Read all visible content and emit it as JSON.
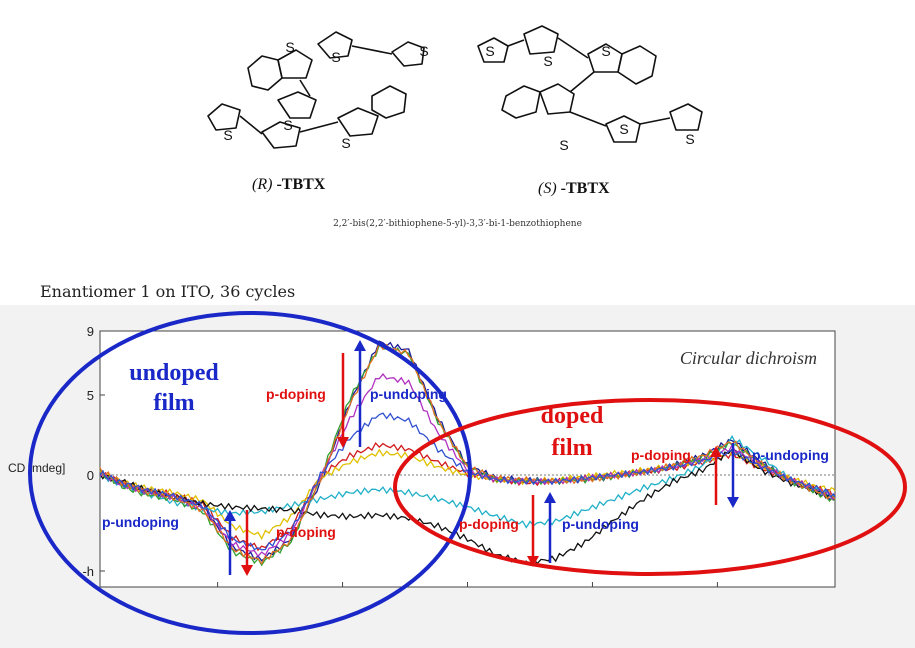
{
  "molecules": {
    "r_label_prefix": "(R)",
    "r_label_suffix": "-TBTX",
    "s_label_prefix": "(S)",
    "s_label_suffix": "-TBTX",
    "heteroatom": "S",
    "compound_name": "2,2′-bis(2,2′-bithiophene-5-yl)-3,3′-bi-1-benzothiophene"
  },
  "experiment_title": "Enantiomer 1 on ITO, 36 cycles",
  "chart_data": {
    "type": "line",
    "title": "Circular dichroism",
    "ylabel": "CD [mdeg]",
    "ylim": [
      -7,
      9
    ],
    "yticks": [
      "9",
      "5",
      "0",
      "-h"
    ],
    "y_tick_values": [
      9,
      5,
      0,
      -6
    ],
    "x_range_hint": "wavelength axis, no tick labels shown",
    "x_label_ticks_visible": false,
    "xlim": [
      0,
      100
    ],
    "x_major_ticks": [
      16,
      33,
      50,
      67,
      84
    ],
    "zero_line": "dashed",
    "series": [
      {
        "color": "#1a1a99",
        "x": [
          0,
          3,
          6,
          10,
          14,
          18,
          22,
          26,
          30,
          34,
          38,
          42,
          46,
          50,
          54,
          58,
          62,
          66,
          70,
          74,
          78,
          82,
          86,
          90,
          94,
          98,
          100
        ],
        "y": [
          0.2,
          -0.6,
          -1.0,
          -1.3,
          -2.0,
          -4.5,
          -5.3,
          -4.0,
          -0.5,
          4.5,
          8.3,
          7.8,
          3.5,
          0.6,
          -0.2,
          -0.3,
          -0.4,
          -0.3,
          -0.1,
          0.2,
          0.6,
          1.2,
          2.2,
          0.8,
          -0.4,
          -1.1,
          -1.5
        ]
      },
      {
        "color": "#d11a1a",
        "x": [
          0,
          3,
          6,
          10,
          14,
          18,
          22,
          26,
          30,
          34,
          38,
          42,
          46,
          50,
          54,
          58,
          62,
          66,
          70,
          74,
          78,
          82,
          86,
          90,
          94,
          98,
          100
        ],
        "y": [
          0.1,
          -0.5,
          -0.9,
          -1.2,
          -1.8,
          -3.9,
          -4.6,
          -3.3,
          0.0,
          1.2,
          1.9,
          1.6,
          0.8,
          0.1,
          -0.3,
          -0.5,
          -0.4,
          -0.2,
          0.0,
          0.2,
          0.4,
          0.8,
          1.3,
          0.4,
          -0.3,
          -0.9,
          -1.2
        ]
      },
      {
        "color": "#e0c000",
        "x": [
          0,
          3,
          6,
          10,
          14,
          18,
          22,
          26,
          30,
          34,
          38,
          42,
          46,
          50,
          54,
          58,
          62,
          66,
          70,
          74,
          78,
          82,
          86,
          90,
          94,
          98,
          100
        ],
        "y": [
          0.1,
          -0.4,
          -0.8,
          -1.1,
          -1.6,
          -3.2,
          -3.8,
          -2.6,
          -0.2,
          0.8,
          1.4,
          1.2,
          0.5,
          0.0,
          -0.3,
          -0.4,
          -0.3,
          -0.1,
          0.1,
          0.3,
          0.6,
          0.9,
          1.4,
          0.5,
          -0.2,
          -0.8,
          -1.0
        ]
      },
      {
        "color": "#20b0c8",
        "x": [
          0,
          3,
          6,
          10,
          14,
          18,
          22,
          26,
          30,
          34,
          38,
          42,
          46,
          50,
          54,
          58,
          62,
          66,
          70,
          74,
          78,
          82,
          86,
          90,
          94,
          98,
          100
        ],
        "y": [
          0.0,
          -0.6,
          -1.1,
          -1.7,
          -2.1,
          -2.4,
          -2.3,
          -1.9,
          -1.5,
          -1.1,
          -0.9,
          -1.1,
          -1.5,
          -2.0,
          -2.6,
          -3.1,
          -2.9,
          -2.2,
          -1.5,
          -0.8,
          -0.2,
          0.6,
          2.3,
          1.1,
          -0.3,
          -1.0,
          -1.3
        ]
      },
      {
        "color": "#111111",
        "x": [
          0,
          3,
          6,
          10,
          14,
          18,
          22,
          26,
          30,
          34,
          38,
          42,
          46,
          50,
          54,
          58,
          62,
          66,
          70,
          74,
          78,
          82,
          86,
          90,
          94,
          98,
          100
        ],
        "y": [
          0.0,
          -0.4,
          -0.9,
          -1.4,
          -1.8,
          -2.0,
          -2.1,
          -2.2,
          -2.5,
          -2.6,
          -2.5,
          -2.7,
          -3.2,
          -4.0,
          -5.0,
          -5.5,
          -5.2,
          -4.2,
          -2.8,
          -1.5,
          -0.4,
          0.3,
          1.6,
          0.3,
          -0.5,
          -1.1,
          -1.5
        ]
      },
      {
        "color": "#30a030",
        "x": [
          0,
          3,
          6,
          10,
          14,
          18,
          22,
          26,
          30,
          34,
          38,
          42,
          46,
          50,
          54,
          58,
          62,
          66,
          70,
          74,
          78,
          82,
          86,
          90,
          94,
          98,
          100
        ],
        "y": [
          0.2,
          -0.7,
          -1.2,
          -1.5,
          -2.3,
          -4.8,
          -5.5,
          -4.2,
          -0.2,
          4.8,
          8.0,
          7.6,
          3.3,
          0.5,
          -0.3,
          -0.4,
          -0.4,
          -0.3,
          -0.1,
          0.2,
          0.5,
          1.1,
          2.0,
          0.7,
          -0.4,
          -1.2,
          -1.6
        ]
      },
      {
        "color": "#b030c0",
        "x": [
          0,
          3,
          6,
          10,
          14,
          18,
          22,
          26,
          30,
          34,
          38,
          42,
          46,
          50,
          54,
          58,
          62,
          66,
          70,
          74,
          78,
          82,
          86,
          90,
          94,
          98,
          100
        ],
        "y": [
          0.1,
          -0.6,
          -1.0,
          -1.4,
          -2.1,
          -4.3,
          -5.0,
          -3.7,
          -0.1,
          3.5,
          6.2,
          5.8,
          2.6,
          0.3,
          -0.3,
          -0.4,
          -0.4,
          -0.2,
          0.0,
          0.2,
          0.5,
          1.0,
          1.7,
          0.6,
          -0.3,
          -1.0,
          -1.4
        ]
      },
      {
        "color": "#e07020",
        "x": [
          0,
          3,
          6,
          10,
          14,
          18,
          22,
          26,
          30,
          34,
          38,
          42,
          46,
          50,
          54,
          58,
          62,
          66,
          70,
          74,
          78,
          82,
          86,
          90,
          94,
          98,
          100
        ],
        "y": [
          0.3,
          -0.5,
          -1.0,
          -1.4,
          -2.2,
          -4.6,
          -5.4,
          -4.1,
          -0.3,
          4.4,
          8.1,
          7.6,
          3.4,
          0.5,
          -0.2,
          -0.3,
          -0.4,
          -0.3,
          -0.1,
          0.2,
          0.6,
          1.2,
          2.1,
          0.7,
          -0.4,
          -1.1,
          -1.5
        ]
      },
      {
        "color": "#3050d0",
        "x": [
          0,
          3,
          6,
          10,
          14,
          18,
          22,
          26,
          30,
          34,
          38,
          42,
          46,
          50,
          54,
          58,
          62,
          66,
          70,
          74,
          78,
          82,
          86,
          90,
          94,
          98,
          100
        ],
        "y": [
          0.1,
          -0.5,
          -0.9,
          -1.3,
          -1.9,
          -4.0,
          -4.7,
          -3.5,
          0.0,
          2.3,
          3.8,
          3.4,
          1.6,
          0.2,
          -0.3,
          -0.4,
          -0.4,
          -0.2,
          0.0,
          0.2,
          0.5,
          0.9,
          1.5,
          0.5,
          -0.3,
          -0.9,
          -1.3
        ]
      }
    ],
    "annotations": [
      {
        "text": "Circular dichroism",
        "kind": "chart-title"
      },
      {
        "text": "undoped",
        "kind": "region-label"
      },
      {
        "text": "film",
        "kind": "region-label"
      },
      {
        "text": "doped",
        "kind": "region-label"
      },
      {
        "text": "film",
        "kind": "region-label"
      },
      {
        "text": "p-doping",
        "kind": "arrow-label",
        "color": "#e01010"
      },
      {
        "text": "p-undoping",
        "kind": "arrow-label",
        "color": "#1a28c8"
      },
      {
        "text": "p-doping",
        "kind": "arrow-label",
        "color": "#e01010"
      },
      {
        "text": "p-undoping",
        "kind": "arrow-label",
        "color": "#1a28c8"
      },
      {
        "text": "p-doping",
        "kind": "arrow-label",
        "color": "#e01010"
      },
      {
        "text": "p-undoping",
        "kind": "arrow-label",
        "color": "#1a28c8"
      },
      {
        "text": "p-doping",
        "kind": "arrow-label",
        "color": "#e01010"
      },
      {
        "text": "p-undoping",
        "kind": "arrow-label",
        "color": "#1a28c8"
      }
    ],
    "colors": {
      "doping": "#e01010",
      "undoping": "#1a28c8",
      "undoped_region": "#1a28c8",
      "doped_region": "#e01010"
    }
  }
}
